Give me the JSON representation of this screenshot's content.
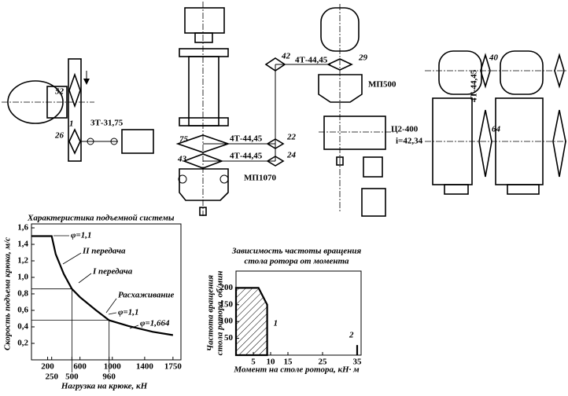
{
  "diagram": {
    "labels": [
      "52",
      "3Т-31,75",
      "1",
      "26",
      "42",
      "4Т-44,45",
      "75",
      "4Т-44,45",
      "22",
      "43",
      "4Т-44,45",
      "24",
      "МП1070",
      "29",
      "МП500",
      "Ц2-400",
      "i=42,34",
      "40",
      "4Т-44,45",
      "64"
    ]
  },
  "chart_data": [
    {
      "type": "line",
      "title": "Характеристика подъемной системы",
      "x_label": "Нагрузка на крюке, кН",
      "y_label": "Скорость подъема крюка, м/с",
      "xlim": [
        0,
        1800
      ],
      "ylim": [
        0,
        1.6
      ],
      "xticks": [
        200,
        250,
        500,
        600,
        960,
        1000,
        1400,
        1750
      ],
      "yticks": [
        {
          "value": 0.2,
          "label": "0,2"
        },
        {
          "value": 0.4,
          "label": "0,4"
        },
        {
          "value": 0.6,
          "label": "0,6"
        },
        {
          "value": 0.8,
          "label": "0,8"
        },
        {
          "value": 1.0,
          "label": "1,0"
        },
        {
          "value": 1.2,
          "label": "1,2"
        },
        {
          "value": 1.4,
          "label": "1,4"
        },
        {
          "value": 1.6,
          "label": "1,6"
        }
      ],
      "series": [
        {
          "color": "#000000",
          "x": [
            0,
            250,
            300,
            400,
            500,
            600,
            800,
            960,
            1200,
            1500,
            1750
          ],
          "values": [
            1.5,
            1.5,
            1.28,
            1.04,
            0.86,
            0.76,
            0.6,
            0.48,
            0.41,
            0.34,
            0.3
          ]
        }
      ],
      "annotations": [
        "φ=1,1",
        "II передача",
        "I передача",
        "Расхаживание",
        "φ=1,1",
        "φ=1,664"
      ]
    },
    {
      "type": "line",
      "title": [
        "Зависимость частоты вращения",
        "стола ротора от момента"
      ],
      "x_label": "Момент на столе ротора, кН· м",
      "y_label": [
        "Частота вращения",
        "стола ротора, об/мин"
      ],
      "xlim": [
        0,
        35
      ],
      "ylim": [
        0,
        250
      ],
      "xticks": [
        5,
        10,
        15,
        25,
        35
      ],
      "yticks": [
        50,
        100,
        150,
        200
      ],
      "series": [
        {
          "name": "1",
          "color": "#000000",
          "fill": "hatched",
          "x": [
            0,
            6.5,
            9,
            9
          ],
          "values": [
            200,
            200,
            150,
            0
          ]
        },
        {
          "name": "2",
          "color": "#000000",
          "x": [
            35,
            35
          ],
          "values": [
            0,
            30
          ]
        }
      ]
    }
  ]
}
